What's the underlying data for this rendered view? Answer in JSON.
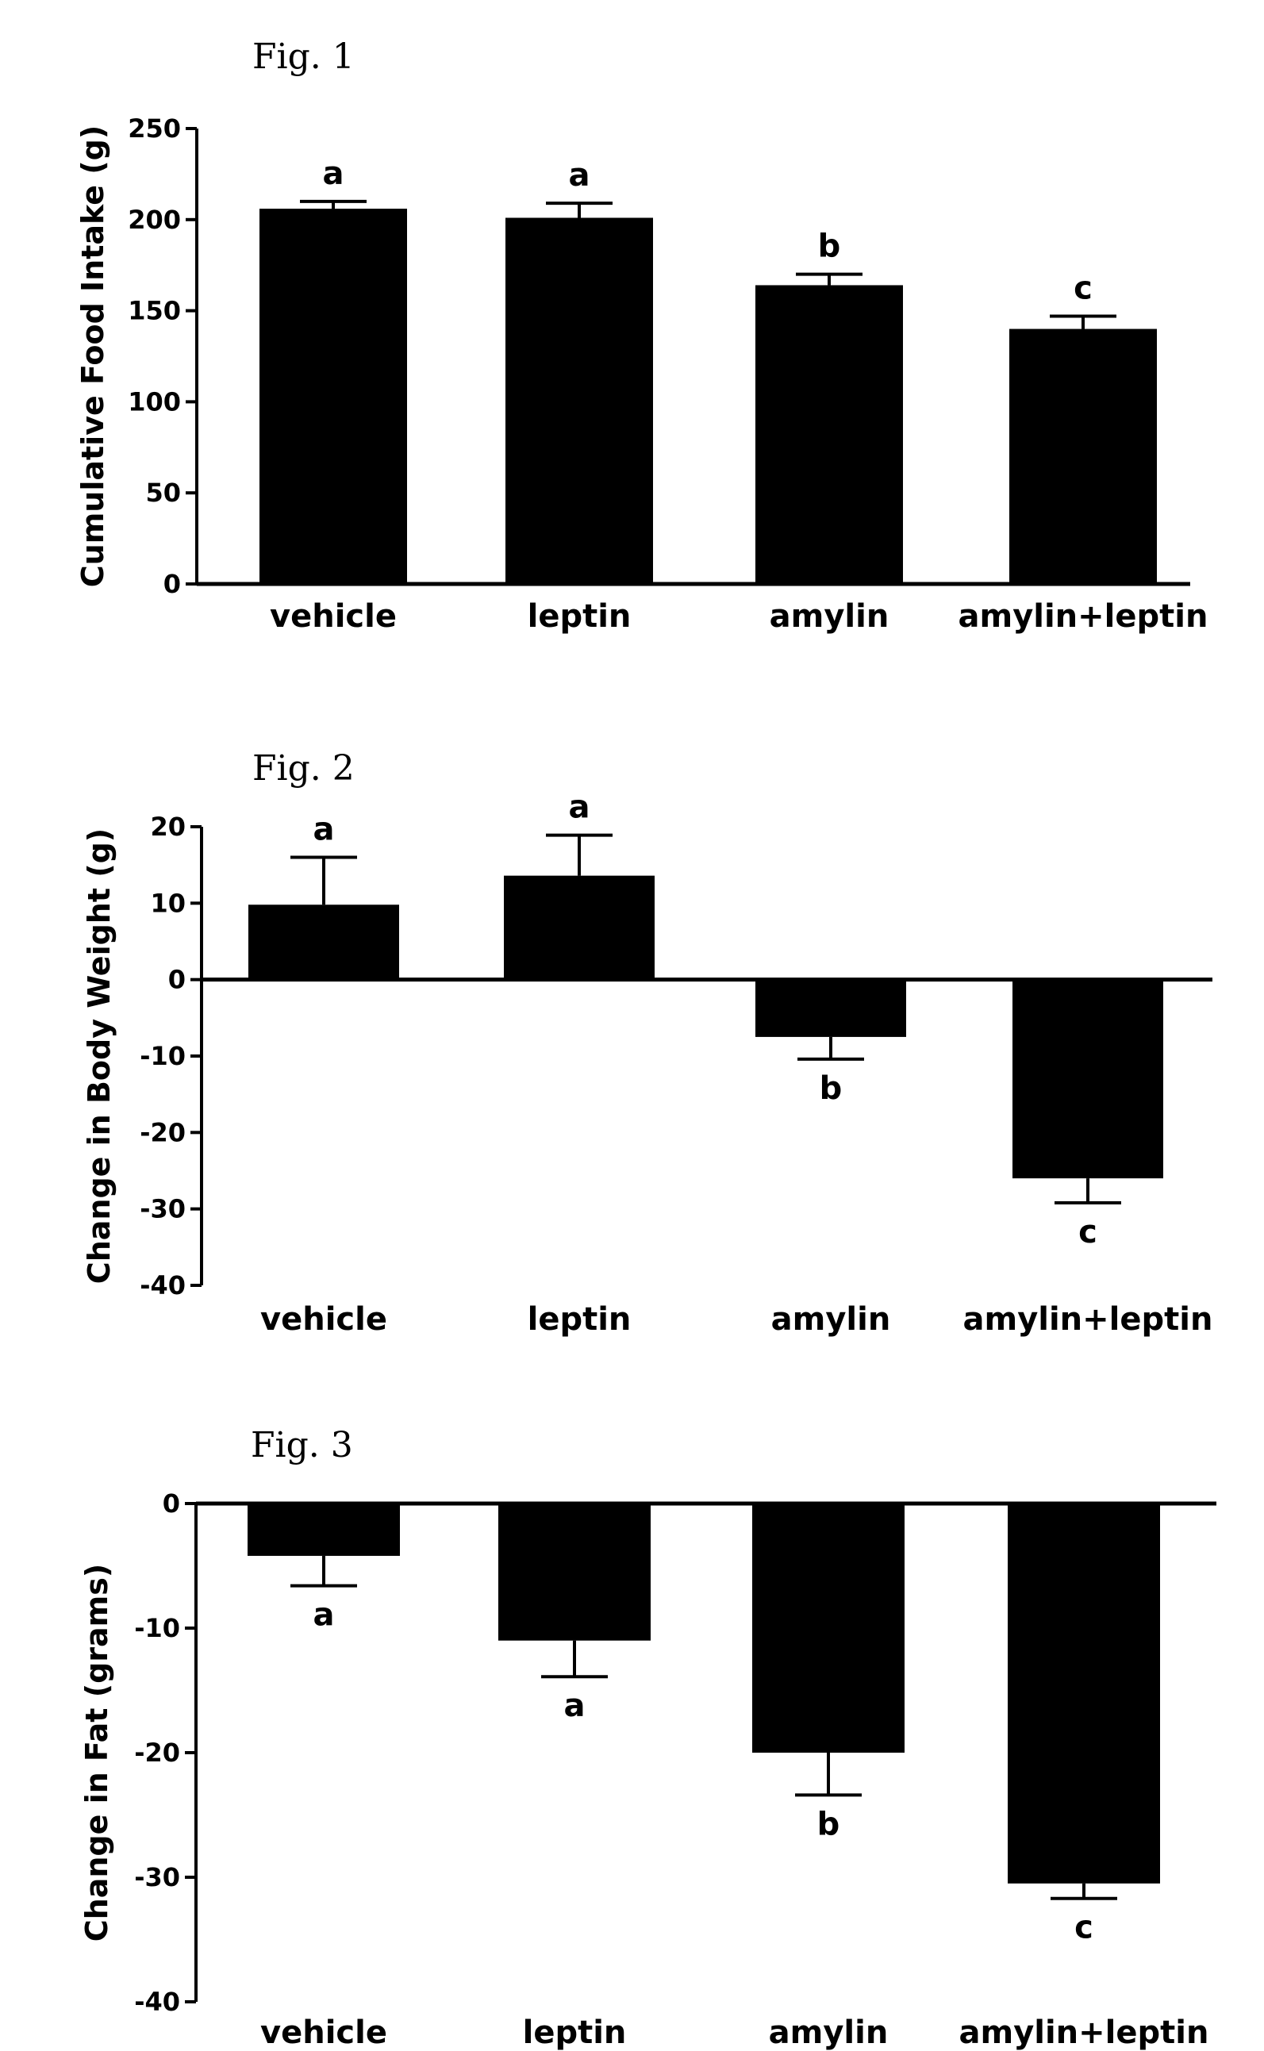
{
  "chart_data": [
    {
      "type": "bar",
      "figure_label": "Fig. 1",
      "title": "",
      "xlabel": "",
      "ylabel": "Cumulative Food Intake (g)",
      "categories": [
        "vehicle",
        "leptin",
        "amylin",
        "amylin+leptin"
      ],
      "values": [
        206,
        201,
        164,
        140
      ],
      "errors": [
        4,
        8,
        6,
        7
      ],
      "significance_labels": [
        "a",
        "a",
        "b",
        "c"
      ],
      "ylim": [
        0,
        250
      ],
      "yticks": [
        0,
        50,
        100,
        150,
        200,
        250
      ],
      "ytick_labels": [
        "0",
        "50",
        "100",
        "150",
        "200",
        "250"
      ],
      "bar_color": "#000000",
      "grid": false,
      "legend": "none"
    },
    {
      "type": "bar",
      "figure_label": "Fig. 2",
      "title": "",
      "xlabel": "",
      "ylabel": "Change in Body Weight (g)",
      "categories": [
        "vehicle",
        "leptin",
        "amylin",
        "amylin+leptin"
      ],
      "values": [
        9.8,
        13.6,
        -7.5,
        -26
      ],
      "errors": [
        6.2,
        5.3,
        2.9,
        3.2
      ],
      "significance_labels": [
        "a",
        "a",
        "b",
        "c"
      ],
      "ylim": [
        -40,
        20
      ],
      "yticks": [
        -40,
        -30,
        -20,
        -10,
        0,
        10,
        20
      ],
      "ytick_labels": [
        "-40",
        "-30",
        "-20",
        "-10",
        "0",
        "10",
        "20"
      ],
      "bar_color": "#000000",
      "grid": false,
      "legend": "none"
    },
    {
      "type": "bar",
      "figure_label": "Fig. 3",
      "title": "",
      "xlabel": "",
      "ylabel": "Change in Fat (grams)",
      "categories": [
        "vehicle",
        "leptin",
        "amylin",
        "amylin+leptin"
      ],
      "values": [
        -4.2,
        -11,
        -20,
        -30.5
      ],
      "errors": [
        2.4,
        2.9,
        3.4,
        1.2
      ],
      "significance_labels": [
        "a",
        "a",
        "b",
        "c"
      ],
      "ylim": [
        -40,
        0
      ],
      "yticks": [
        -40,
        -30,
        -20,
        -10,
        0
      ],
      "ytick_labels": [
        "-40",
        "-30",
        "-20",
        "-10",
        "0"
      ],
      "bar_color": "#000000",
      "grid": false,
      "legend": "none"
    }
  ]
}
